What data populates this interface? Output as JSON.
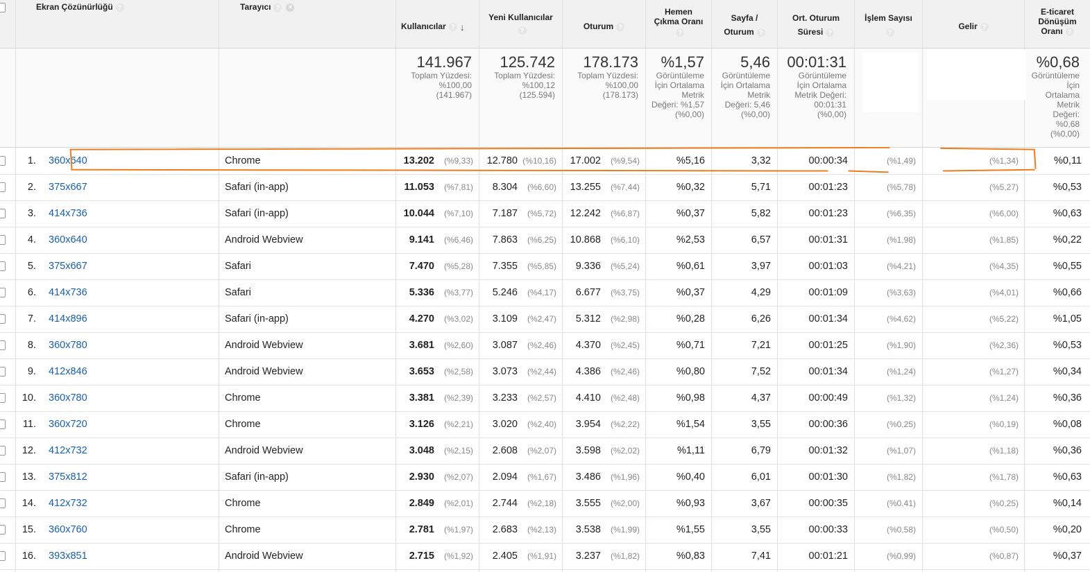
{
  "header": {
    "col_resolution": "Ekran Çözünürlüğü",
    "col_browser": "Tarayıcı",
    "col_users": "Kullanıcılar",
    "col_new_users": "Yeni Kullanıcılar",
    "col_sessions": "Oturum",
    "col_bounce_l1": "Hemen",
    "col_bounce_l2": "Çıkma Oranı",
    "col_pps_l1": "Sayfa /",
    "col_pps_l2": "Oturum",
    "col_dur_l1": "Ort. Oturum",
    "col_dur_l2": "Süresi",
    "col_tx": "İşlem Sayısı",
    "col_revenue": "Gelir",
    "col_conv_l1": "E-ticaret",
    "col_conv_l2": "Dönüşüm",
    "col_conv_l3": "Oranı",
    "help_glyph": "?",
    "close_glyph": "×",
    "sort_glyph": "↓"
  },
  "totals": {
    "users": "141.967",
    "users_l1": "Toplam Yüzdesi:",
    "users_l2": "%100,00",
    "users_l3": "(141.967)",
    "new_users": "125.742",
    "new_users_l1": "Toplam Yüzdesi:",
    "new_users_l2": "%100,12",
    "new_users_l3": "(125.594)",
    "sessions": "178.173",
    "sessions_l1": "Toplam Yüzdesi:",
    "sessions_l2": "%100,00",
    "sessions_l3": "(178.173)",
    "bounce": "%1,57",
    "bounce_l1": "Görüntüleme",
    "bounce_l2": "İçin Ortalama",
    "bounce_l3": "Metrik",
    "bounce_l4": "Değeri: %1,57",
    "bounce_l5": "(%0,00)",
    "pps": "5,46",
    "pps_l1": "Görüntüleme",
    "pps_l2": "İçin Ortalama",
    "pps_l3": "Metrik",
    "pps_l4": "Değeri: 5,46",
    "pps_l5": "(%0,00)",
    "dur": "00:01:31",
    "dur_l1": "Görüntüleme",
    "dur_l2": "İçin Ortalama",
    "dur_l3": "Metrik Değeri:",
    "dur_l4": "00:01:31",
    "dur_l5": "(%0,00)",
    "conv": "%0,68",
    "conv_l1": "Görüntüleme",
    "conv_l2": "İçin",
    "conv_l3": "Ortalama",
    "conv_l4": "Metrik",
    "conv_l5": "Değeri:",
    "conv_l6": "%0,68",
    "conv_l7": "(%0,00)"
  },
  "rows": [
    {
      "idx": "1.",
      "res": "360x640",
      "browser": "Chrome",
      "users": "13.202",
      "users_pct": "(%9,33)",
      "new": "12.780",
      "new_pct": "(%10,16)",
      "sess": "17.002",
      "sess_pct": "(%9,54)",
      "bounce": "%5,16",
      "pps": "3,32",
      "dur": "00:00:34",
      "tx_pct": "(%1,49)",
      "rev_pct": "(%1,34)",
      "conv": "%0,11"
    },
    {
      "idx": "2.",
      "res": "375x667",
      "browser": "Safari (in-app)",
      "users": "11.053",
      "users_pct": "(%7,81)",
      "new": "8.304",
      "new_pct": "(%6,60)",
      "sess": "13.255",
      "sess_pct": "(%7,44)",
      "bounce": "%0,32",
      "pps": "5,71",
      "dur": "00:01:23",
      "tx_pct": "(%5,78)",
      "rev_pct": "(%5,27)",
      "conv": "%0,53"
    },
    {
      "idx": "3.",
      "res": "414x736",
      "browser": "Safari (in-app)",
      "users": "10.044",
      "users_pct": "(%7,10)",
      "new": "7.187",
      "new_pct": "(%5,72)",
      "sess": "12.242",
      "sess_pct": "(%6,87)",
      "bounce": "%0,37",
      "pps": "5,82",
      "dur": "00:01:23",
      "tx_pct": "(%6,35)",
      "rev_pct": "(%6,00)",
      "conv": "%0,63"
    },
    {
      "idx": "4.",
      "res": "360x640",
      "browser": "Android Webview",
      "users": "9.141",
      "users_pct": "(%6,46)",
      "new": "7.863",
      "new_pct": "(%6,25)",
      "sess": "10.868",
      "sess_pct": "(%6,10)",
      "bounce": "%2,53",
      "pps": "6,57",
      "dur": "00:01:31",
      "tx_pct": "(%1,98)",
      "rev_pct": "(%1,85)",
      "conv": "%0,22"
    },
    {
      "idx": "5.",
      "res": "375x667",
      "browser": "Safari",
      "users": "7.470",
      "users_pct": "(%5,28)",
      "new": "7.355",
      "new_pct": "(%5,85)",
      "sess": "9.336",
      "sess_pct": "(%5,24)",
      "bounce": "%0,61",
      "pps": "3,97",
      "dur": "00:01:03",
      "tx_pct": "(%4,21)",
      "rev_pct": "(%4,35)",
      "conv": "%0,55"
    },
    {
      "idx": "6.",
      "res": "414x736",
      "browser": "Safari",
      "users": "5.336",
      "users_pct": "(%3,77)",
      "new": "5.246",
      "new_pct": "(%4,17)",
      "sess": "6.677",
      "sess_pct": "(%3,75)",
      "bounce": "%0,37",
      "pps": "4,29",
      "dur": "00:01:09",
      "tx_pct": "(%3,63)",
      "rev_pct": "(%4,01)",
      "conv": "%0,66"
    },
    {
      "idx": "7.",
      "res": "414x896",
      "browser": "Safari (in-app)",
      "users": "4.270",
      "users_pct": "(%3,02)",
      "new": "3.109",
      "new_pct": "(%2,47)",
      "sess": "5.312",
      "sess_pct": "(%2,98)",
      "bounce": "%0,28",
      "pps": "6,26",
      "dur": "00:01:34",
      "tx_pct": "(%4,62)",
      "rev_pct": "(%5,22)",
      "conv": "%1,05"
    },
    {
      "idx": "8.",
      "res": "360x780",
      "browser": "Android Webview",
      "users": "3.681",
      "users_pct": "(%2,60)",
      "new": "3.087",
      "new_pct": "(%2,46)",
      "sess": "4.370",
      "sess_pct": "(%2,45)",
      "bounce": "%0,71",
      "pps": "7,21",
      "dur": "00:01:25",
      "tx_pct": "(%1,90)",
      "rev_pct": "(%2,36)",
      "conv": "%0,53"
    },
    {
      "idx": "9.",
      "res": "412x846",
      "browser": "Android Webview",
      "users": "3.653",
      "users_pct": "(%2,58)",
      "new": "3.073",
      "new_pct": "(%2,44)",
      "sess": "4.386",
      "sess_pct": "(%2,46)",
      "bounce": "%0,80",
      "pps": "7,52",
      "dur": "00:01:34",
      "tx_pct": "(%1,24)",
      "rev_pct": "(%1,27)",
      "conv": "%0,34"
    },
    {
      "idx": "10.",
      "res": "360x780",
      "browser": "Chrome",
      "users": "3.381",
      "users_pct": "(%2,39)",
      "new": "3.233",
      "new_pct": "(%2,57)",
      "sess": "4.410",
      "sess_pct": "(%2,48)",
      "bounce": "%0,98",
      "pps": "4,37",
      "dur": "00:00:49",
      "tx_pct": "(%1,32)",
      "rev_pct": "(%1,24)",
      "conv": "%0,36"
    },
    {
      "idx": "11.",
      "res": "360x720",
      "browser": "Chrome",
      "users": "3.126",
      "users_pct": "(%2,21)",
      "new": "3.020",
      "new_pct": "(%2,40)",
      "sess": "3.954",
      "sess_pct": "(%2,22)",
      "bounce": "%1,54",
      "pps": "3,55",
      "dur": "00:00:36",
      "tx_pct": "(%0,25)",
      "rev_pct": "(%0,19)",
      "conv": "%0,08"
    },
    {
      "idx": "12.",
      "res": "412x732",
      "browser": "Android Webview",
      "users": "3.048",
      "users_pct": "(%2,15)",
      "new": "2.608",
      "new_pct": "(%2,07)",
      "sess": "3.598",
      "sess_pct": "(%2,02)",
      "bounce": "%1,11",
      "pps": "6,79",
      "dur": "00:01:32",
      "tx_pct": "(%1,07)",
      "rev_pct": "(%1,18)",
      "conv": "%0,36"
    },
    {
      "idx": "13.",
      "res": "375x812",
      "browser": "Safari (in-app)",
      "users": "2.930",
      "users_pct": "(%2,07)",
      "new": "2.094",
      "new_pct": "(%1,67)",
      "sess": "3.486",
      "sess_pct": "(%1,96)",
      "bounce": "%0,40",
      "pps": "6,01",
      "dur": "00:01:30",
      "tx_pct": "(%1,82)",
      "rev_pct": "(%1,78)",
      "conv": "%0,63"
    },
    {
      "idx": "14.",
      "res": "412x732",
      "browser": "Chrome",
      "users": "2.849",
      "users_pct": "(%2,01)",
      "new": "2.744",
      "new_pct": "(%2,18)",
      "sess": "3.555",
      "sess_pct": "(%2,00)",
      "bounce": "%0,93",
      "pps": "3,67",
      "dur": "00:00:35",
      "tx_pct": "(%0,41)",
      "rev_pct": "(%0,25)",
      "conv": "%0,14"
    },
    {
      "idx": "15.",
      "res": "360x760",
      "browser": "Chrome",
      "users": "2.781",
      "users_pct": "(%1,97)",
      "new": "2.683",
      "new_pct": "(%2,13)",
      "sess": "3.538",
      "sess_pct": "(%1,99)",
      "bounce": "%1,55",
      "pps": "3,55",
      "dur": "00:00:33",
      "tx_pct": "(%0,58)",
      "rev_pct": "(%0,50)",
      "conv": "%0,20"
    },
    {
      "idx": "16.",
      "res": "393x851",
      "browser": "Android Webview",
      "users": "2.715",
      "users_pct": "(%1,92)",
      "new": "2.405",
      "new_pct": "(%1,91)",
      "sess": "3.237",
      "sess_pct": "(%1,82)",
      "bounce": "%0,83",
      "pps": "7,41",
      "dur": "00:01:21",
      "tx_pct": "(%0,99)",
      "rev_pct": "(%0,87)",
      "conv": "%0,37"
    }
  ],
  "colors": {
    "link": "#1a5fa8",
    "highlight": "#f07d1d"
  }
}
